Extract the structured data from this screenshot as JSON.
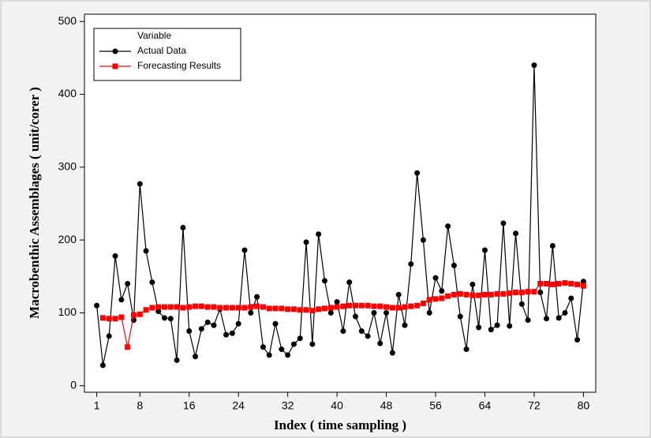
{
  "chart_data": {
    "type": "line",
    "x_label": "Index ( time sampling )",
    "y_label": "Macrobenthic Assemblages ( unit/corer )",
    "legend_title": "Variable",
    "legend": "top-left",
    "x": [
      1,
      2,
      3,
      4,
      5,
      6,
      7,
      8,
      9,
      10,
      11,
      12,
      13,
      14,
      15,
      16,
      17,
      18,
      19,
      20,
      21,
      22,
      23,
      24,
      25,
      26,
      27,
      28,
      29,
      30,
      31,
      32,
      33,
      34,
      35,
      36,
      37,
      38,
      39,
      40,
      41,
      42,
      43,
      44,
      45,
      46,
      47,
      48,
      49,
      50,
      51,
      52,
      53,
      54,
      55,
      56,
      57,
      58,
      59,
      60,
      61,
      62,
      63,
      64,
      65,
      66,
      67,
      68,
      69,
      70,
      71,
      72,
      73,
      74,
      75,
      76,
      77,
      78,
      79,
      80
    ],
    "series": [
      {
        "name": "Actual Data",
        "color": "#000000",
        "marker": "circle",
        "values": [
          110,
          28,
          68,
          178,
          118,
          140,
          90,
          277,
          185,
          142,
          102,
          93,
          92,
          35,
          217,
          75,
          40,
          78,
          87,
          83,
          105,
          70,
          72,
          85,
          186,
          100,
          122,
          53,
          42,
          85,
          50,
          42,
          57,
          65,
          197,
          57,
          208,
          144,
          100,
          115,
          75,
          142,
          95,
          75,
          68,
          100,
          58,
          100,
          45,
          125,
          83,
          167,
          292,
          200,
          100,
          148,
          130,
          219,
          165,
          95,
          50,
          139,
          80,
          186,
          77,
          83,
          223,
          82,
          209,
          112,
          90,
          440,
          128,
          92,
          192,
          93,
          100,
          120,
          63,
          143
        ]
      },
      {
        "name": "Forecasting Results",
        "color": "#ff0000",
        "marker": "square",
        "values": [
          null,
          93,
          92,
          92,
          94,
          53,
          97,
          98,
          104,
          107,
          108,
          108,
          108,
          108,
          107,
          108,
          109,
          109,
          108,
          108,
          107,
          107,
          107,
          107,
          107,
          108,
          109,
          108,
          106,
          106,
          106,
          105,
          105,
          104,
          104,
          103,
          105,
          106,
          107,
          108,
          109,
          110,
          110,
          110,
          110,
          109,
          109,
          108,
          107,
          107,
          108,
          109,
          110,
          113,
          118,
          119,
          120,
          123,
          125,
          126,
          125,
          124,
          124,
          125,
          125,
          126,
          126,
          127,
          128,
          128,
          129,
          129,
          140,
          140,
          139,
          140,
          141,
          140,
          139,
          137
        ]
      }
    ],
    "xlim": [
      -1,
      82
    ],
    "xticks": [
      1,
      8,
      16,
      24,
      32,
      40,
      48,
      56,
      64,
      72,
      80
    ],
    "ylim": [
      -9,
      510
    ],
    "yticks": [
      0,
      100,
      200,
      300,
      400,
      500
    ]
  }
}
